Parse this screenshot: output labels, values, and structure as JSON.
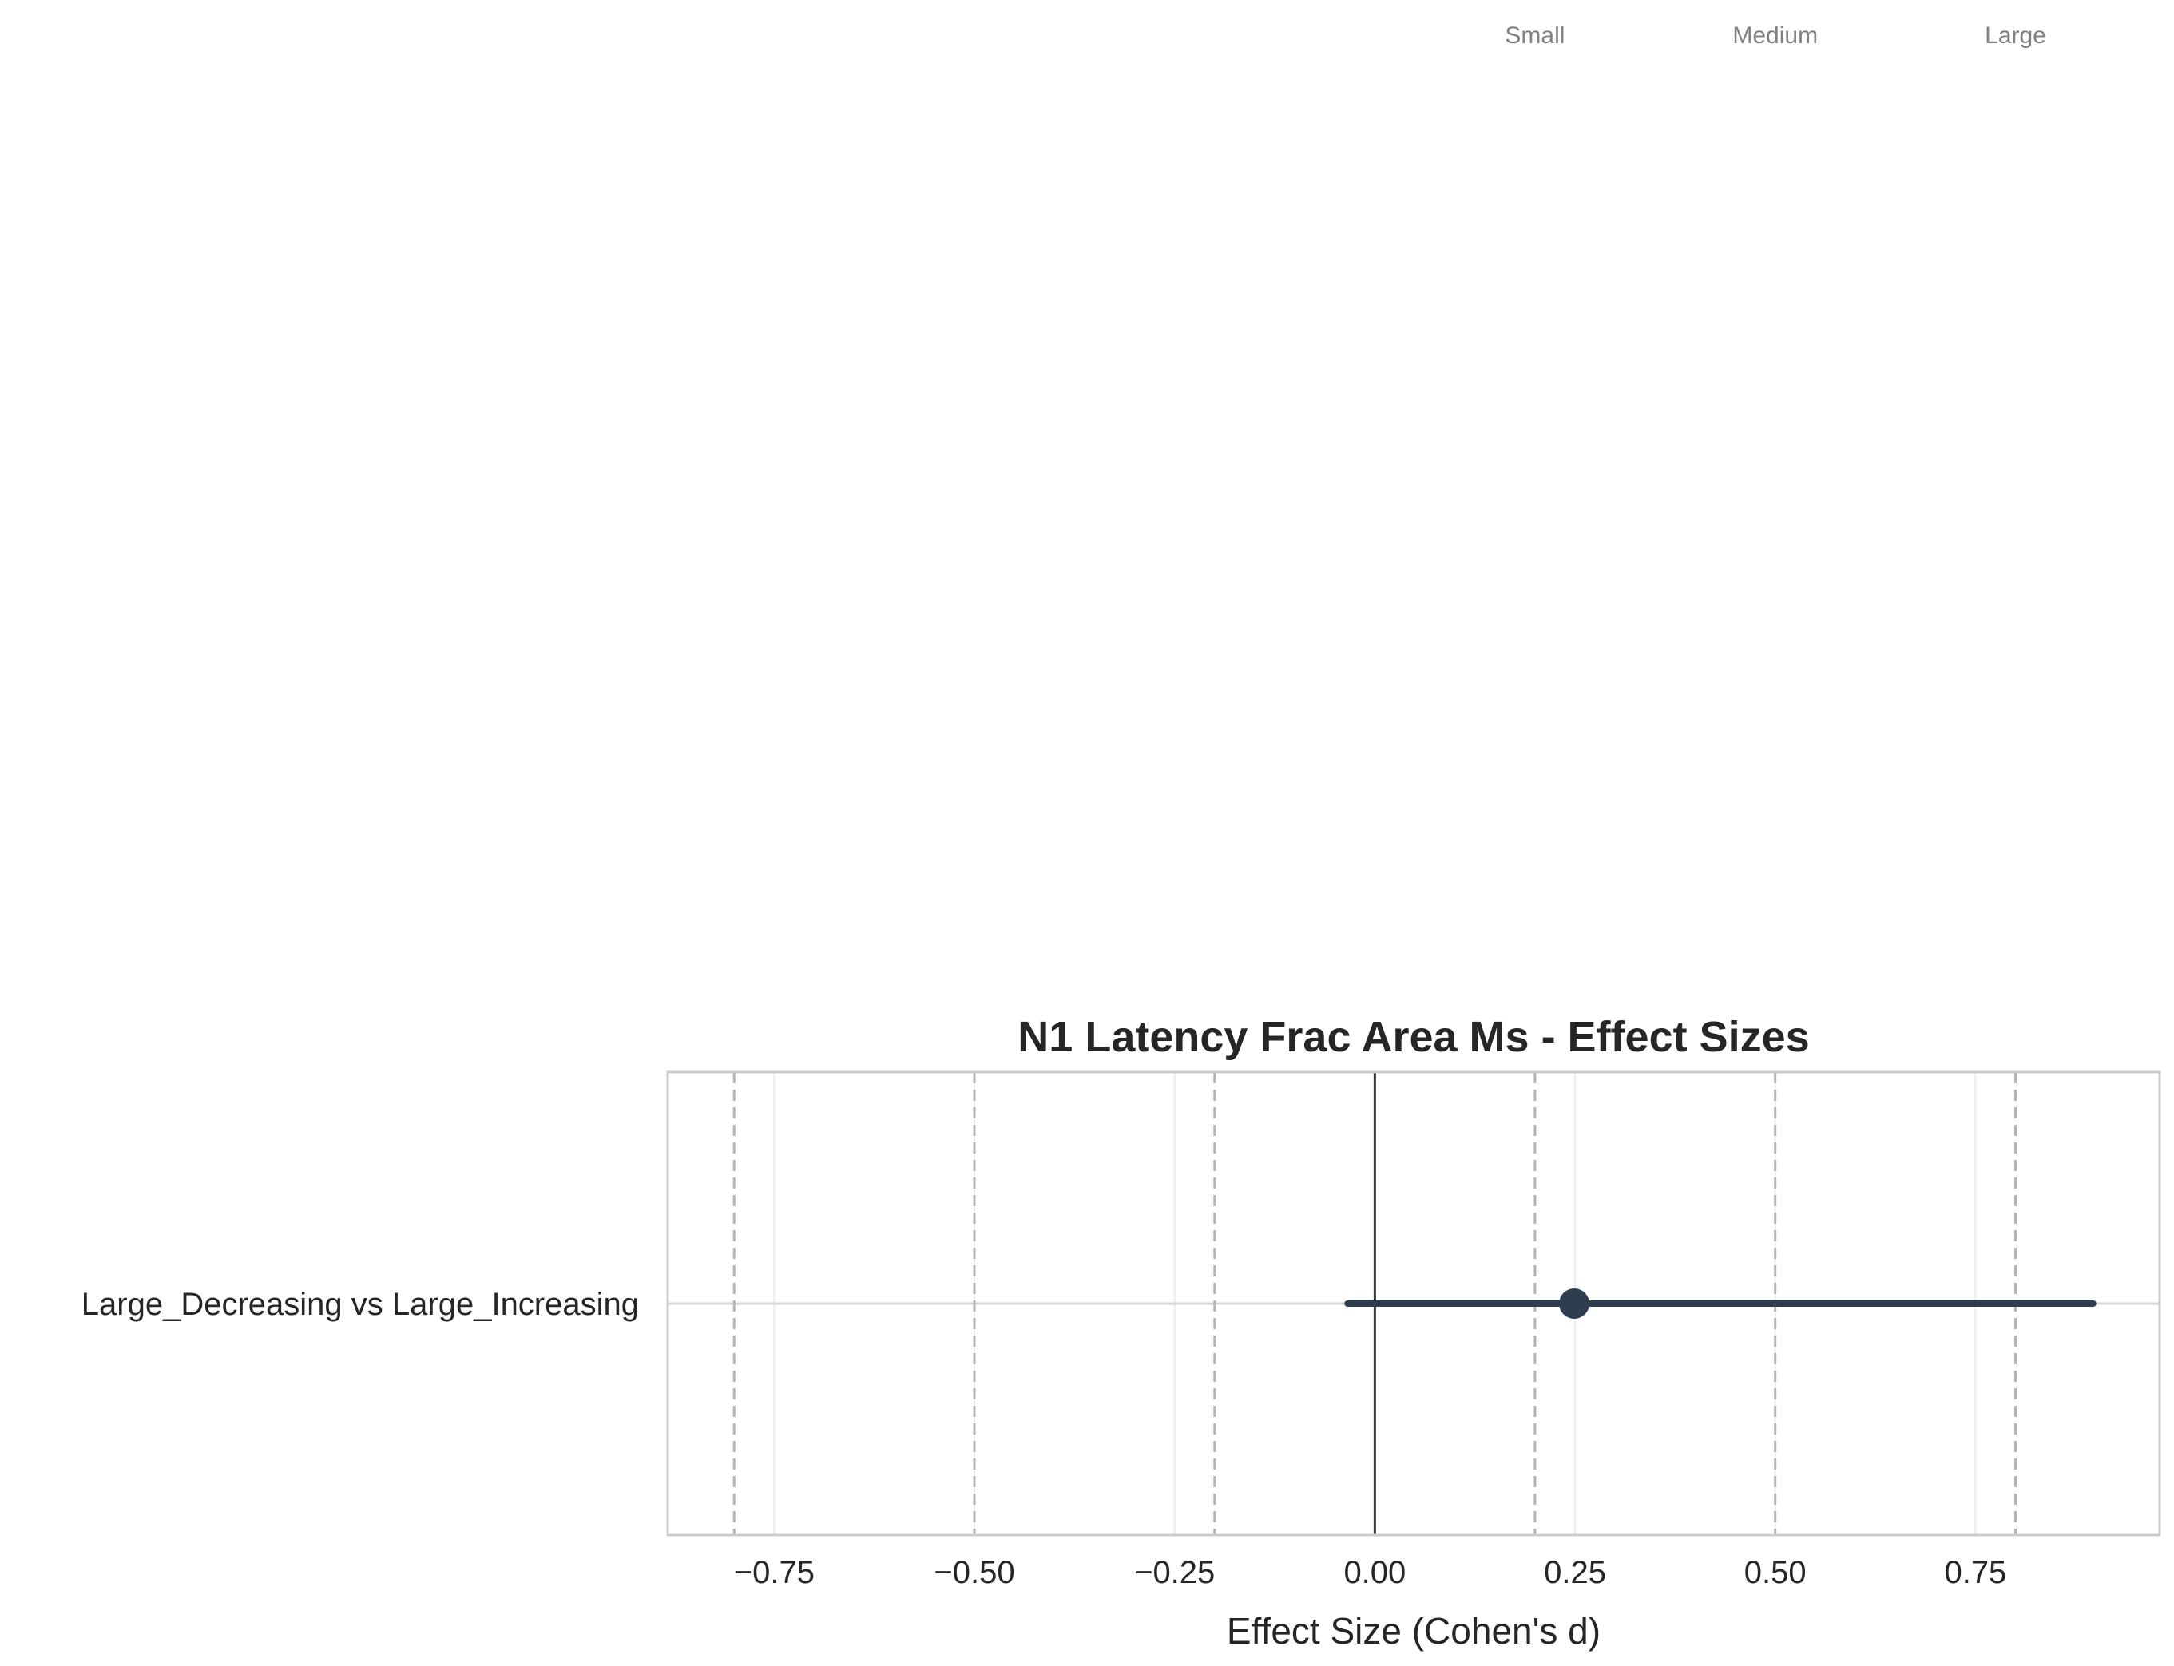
{
  "chart_data": {
    "type": "forest",
    "title": "N1 Latency Frac Area Ms - Effect Sizes",
    "xlabel": "Effect Size (Cohen's d)",
    "ylabel": "",
    "xlim": [
      -0.883,
      0.98
    ],
    "x_ticks": [
      -0.75,
      -0.5,
      -0.25,
      0.0,
      0.25,
      0.5,
      0.75
    ],
    "x_tick_labels": [
      "−0.75",
      "−0.50",
      "−0.25",
      "0.00",
      "0.25",
      "0.50",
      "0.75"
    ],
    "grid": true,
    "comparisons": [
      {
        "label": "Large_Decreasing vs Large_Increasing",
        "d": 0.249,
        "ci_low": -0.034,
        "ci_high": 0.897
      }
    ],
    "reference_line": 0.0,
    "thresholds": [
      -0.8,
      -0.5,
      -0.2,
      0.2,
      0.5,
      0.8
    ],
    "threshold_labels": [
      {
        "text": "Small",
        "x": 0.2
      },
      {
        "text": "Medium",
        "x": 0.5
      },
      {
        "text": "Large",
        "x": 0.8
      }
    ],
    "colors": {
      "point": "#2c3e50",
      "ci": "#2c3e50",
      "reference": "#333333",
      "threshold": "#b3b3b3",
      "grid": "#ebebeb",
      "spine": "#cccccc"
    }
  }
}
